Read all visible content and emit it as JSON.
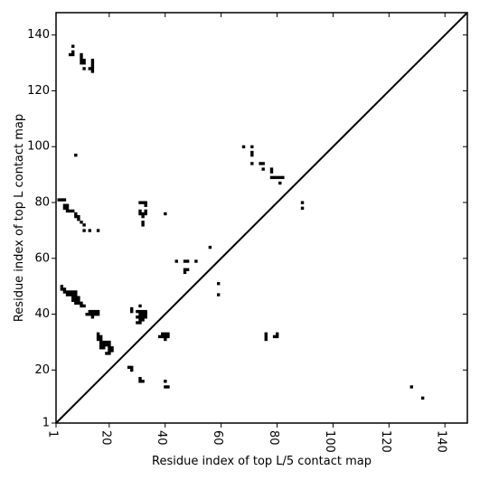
{
  "chart_data": {
    "type": "heatmap",
    "title": "",
    "xlabel": "Residue index of top L/5 contact map",
    "ylabel": "Residue index of top L contact map",
    "xlim": [
      1,
      148
    ],
    "ylim": [
      1,
      148
    ],
    "grid": false,
    "diagonal_line": true,
    "cell_color": "#000000",
    "x_ticks": [
      {
        "value": 1,
        "label": "1"
      },
      {
        "value": 20,
        "label": "20"
      },
      {
        "value": 40,
        "label": "40"
      },
      {
        "value": 60,
        "label": "60"
      },
      {
        "value": 80,
        "label": "80"
      },
      {
        "value": 100,
        "label": "100"
      },
      {
        "value": 120,
        "label": "120"
      },
      {
        "value": 140,
        "label": "140"
      }
    ],
    "y_ticks": [
      {
        "value": 1,
        "label": "1"
      },
      {
        "value": 20,
        "label": "20"
      },
      {
        "value": 40,
        "label": "40"
      },
      {
        "value": 60,
        "label": "60"
      },
      {
        "value": 80,
        "label": "80"
      },
      {
        "value": 100,
        "label": "100"
      },
      {
        "value": 120,
        "label": "120"
      },
      {
        "value": 140,
        "label": "140"
      }
    ],
    "upper_triangle_contacts": [
      [
        7,
        136
      ],
      [
        7,
        134
      ],
      [
        6,
        133
      ],
      [
        7,
        133
      ],
      [
        10,
        133
      ],
      [
        10,
        132
      ],
      [
        10,
        131
      ],
      [
        11,
        131
      ],
      [
        10,
        130
      ],
      [
        11,
        130
      ],
      [
        14,
        131
      ],
      [
        14,
        130
      ],
      [
        14,
        129
      ],
      [
        11,
        128
      ],
      [
        13,
        128
      ],
      [
        14,
        128
      ],
      [
        14,
        127
      ],
      [
        8,
        97
      ],
      [
        2,
        81
      ],
      [
        3,
        81
      ],
      [
        4,
        81
      ],
      [
        4,
        79
      ],
      [
        5,
        79
      ],
      [
        4,
        78
      ],
      [
        5,
        78
      ],
      [
        5,
        77
      ],
      [
        6,
        77
      ],
      [
        7,
        77
      ],
      [
        8,
        76
      ],
      [
        8,
        75
      ],
      [
        9,
        75
      ],
      [
        9,
        74
      ],
      [
        10,
        73
      ],
      [
        11,
        72
      ],
      [
        11,
        70
      ],
      [
        13,
        70
      ],
      [
        16,
        70
      ],
      [
        31,
        80
      ],
      [
        32,
        80
      ],
      [
        33,
        80
      ],
      [
        33,
        79
      ],
      [
        31,
        77
      ],
      [
        33,
        77
      ],
      [
        31,
        76
      ],
      [
        32,
        76
      ],
      [
        33,
        76
      ],
      [
        32,
        75
      ],
      [
        32,
        73
      ],
      [
        32,
        72
      ],
      [
        40,
        76
      ],
      [
        3,
        50
      ],
      [
        3,
        49
      ],
      [
        4,
        49
      ],
      [
        4,
        48
      ],
      [
        5,
        48
      ],
      [
        6,
        48
      ],
      [
        7,
        48
      ],
      [
        8,
        48
      ],
      [
        5,
        47
      ],
      [
        6,
        47
      ],
      [
        7,
        47
      ],
      [
        8,
        47
      ],
      [
        7,
        46
      ],
      [
        8,
        46
      ],
      [
        9,
        46
      ],
      [
        7,
        45
      ],
      [
        8,
        45
      ],
      [
        9,
        45
      ],
      [
        8,
        44
      ],
      [
        9,
        44
      ],
      [
        10,
        44
      ],
      [
        10,
        43
      ],
      [
        11,
        43
      ],
      [
        12,
        40
      ],
      [
        13,
        41
      ],
      [
        13,
        40
      ],
      [
        14,
        41
      ],
      [
        14,
        40
      ],
      [
        15,
        41
      ],
      [
        15,
        40
      ],
      [
        16,
        41
      ],
      [
        16,
        40
      ],
      [
        14,
        39
      ],
      [
        16,
        33
      ],
      [
        16,
        32
      ],
      [
        17,
        32
      ],
      [
        16,
        31
      ],
      [
        17,
        31
      ],
      [
        17,
        30
      ],
      [
        18,
        30
      ],
      [
        19,
        30
      ],
      [
        20,
        30
      ],
      [
        17,
        29
      ],
      [
        18,
        29
      ],
      [
        19,
        29
      ],
      [
        20,
        29
      ],
      [
        17,
        28
      ],
      [
        18,
        28
      ],
      [
        20,
        28
      ],
      [
        21,
        28
      ],
      [
        20,
        27
      ],
      [
        21,
        27
      ],
      [
        19,
        26
      ],
      [
        20,
        26
      ],
      [
        28,
        42
      ],
      [
        28,
        41
      ],
      [
        31,
        43
      ],
      [
        30,
        41
      ],
      [
        31,
        41
      ],
      [
        32,
        41
      ],
      [
        33,
        41
      ],
      [
        31,
        40
      ],
      [
        32,
        40
      ],
      [
        33,
        40
      ],
      [
        30,
        39
      ],
      [
        31,
        39
      ],
      [
        32,
        39
      ],
      [
        33,
        39
      ],
      [
        31,
        38
      ],
      [
        32,
        38
      ],
      [
        30,
        37
      ],
      [
        31,
        37
      ],
      [
        38,
        32
      ],
      [
        39,
        32
      ],
      [
        40,
        32
      ],
      [
        41,
        32
      ],
      [
        39,
        33
      ],
      [
        40,
        33
      ],
      [
        41,
        33
      ],
      [
        40,
        31
      ],
      [
        27,
        21
      ],
      [
        28,
        21
      ],
      [
        28,
        20
      ],
      [
        31,
        17
      ],
      [
        31,
        16
      ],
      [
        32,
        16
      ],
      [
        40,
        16
      ],
      [
        40,
        14
      ],
      [
        41,
        14
      ],
      [
        44,
        59
      ],
      [
        47,
        59
      ],
      [
        48,
        59
      ],
      [
        51,
        59
      ],
      [
        47,
        56
      ],
      [
        48,
        56
      ],
      [
        47,
        55
      ],
      [
        56,
        64
      ],
      [
        59,
        51
      ],
      [
        59,
        47
      ],
      [
        68,
        100
      ],
      [
        71,
        100
      ],
      [
        71,
        98
      ],
      [
        71,
        97
      ],
      [
        71,
        94
      ],
      [
        74,
        94
      ],
      [
        75,
        94
      ],
      [
        75,
        92
      ],
      [
        78,
        92
      ],
      [
        78,
        91
      ],
      [
        78,
        89
      ],
      [
        79,
        89
      ],
      [
        80,
        89
      ],
      [
        81,
        89
      ],
      [
        82,
        89
      ],
      [
        81,
        87
      ],
      [
        89,
        80
      ],
      [
        89,
        78
      ],
      [
        76,
        33
      ],
      [
        76,
        32
      ],
      [
        76,
        31
      ],
      [
        79,
        32
      ],
      [
        80,
        32
      ],
      [
        80,
        33
      ],
      [
        128,
        14
      ],
      [
        132,
        10
      ]
    ]
  }
}
